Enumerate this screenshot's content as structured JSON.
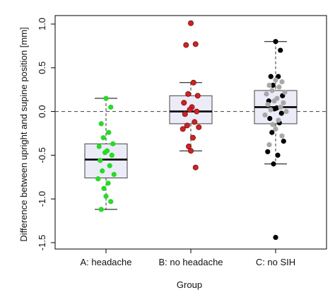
{
  "chart_data": {
    "type": "boxplot",
    "xlabel": "Group",
    "ylabel": "Difference between upright and supine position [mm]",
    "ylim": [
      -1.5,
      1.0
    ],
    "yticks": [
      -1.5,
      -1.0,
      -0.5,
      0.0,
      0.5,
      1.0
    ],
    "ytick_labels": [
      "-1.5",
      "-1.0",
      "-0.5",
      "0.0",
      "0.5",
      "1.0"
    ],
    "reference_line": {
      "y": 0.0,
      "style": "dashed"
    },
    "grid": false,
    "categories": [
      "A: headache",
      "B: no headache",
      "C: no SIH"
    ],
    "box_fill": "#ececf8",
    "boxes": [
      {
        "group": "A: headache",
        "min": -1.12,
        "q1": -0.76,
        "median": -0.55,
        "q3": -0.37,
        "max": 0.15
      },
      {
        "group": "B: no headache",
        "min": -0.45,
        "q1": -0.14,
        "median": 0.0,
        "q3": 0.18,
        "max": 0.33
      },
      {
        "group": "C: no SIH",
        "min": -0.6,
        "q1": -0.14,
        "median": 0.05,
        "q3": 0.24,
        "max": 0.8
      }
    ],
    "points": [
      {
        "group": "A: headache",
        "color": "#22dd22",
        "values": [
          0.15,
          0.05,
          -0.14,
          -0.24,
          -0.3,
          -0.37,
          -0.4,
          -0.45,
          -0.47,
          -0.5,
          -0.56,
          -0.62,
          -0.68,
          -0.72,
          -0.77,
          -0.82,
          -0.88,
          -0.97,
          -1.03,
          -1.12
        ]
      },
      {
        "group": "B: no headache",
        "color": "#d42020",
        "values": [
          1.01,
          0.77,
          0.76,
          0.33,
          0.2,
          0.18,
          0.1,
          0.05,
          0.02,
          0.0,
          -0.03,
          -0.12,
          -0.16,
          -0.18,
          -0.2,
          -0.3,
          -0.4,
          -0.45,
          -0.64
        ]
      },
      {
        "group": "C: no SIH",
        "color": "#000000",
        "values": [
          0.8,
          0.7,
          0.4,
          0.4,
          0.3,
          0.18,
          0.12,
          0.04,
          0.03,
          -0.02,
          -0.08,
          -0.13,
          -0.24,
          -0.34,
          -0.46,
          -0.5,
          -0.6,
          -1.44
        ]
      },
      {
        "group": "C: no SIH",
        "color": "#a8a8a8",
        "values": [
          0.36,
          0.34,
          0.3,
          0.28,
          0.24,
          0.22,
          0.2,
          0.15,
          0.12,
          0.1,
          0.08,
          0.05,
          0.02,
          0.0,
          -0.04,
          -0.1,
          -0.15,
          -0.2,
          -0.28,
          -0.38
        ]
      }
    ]
  }
}
